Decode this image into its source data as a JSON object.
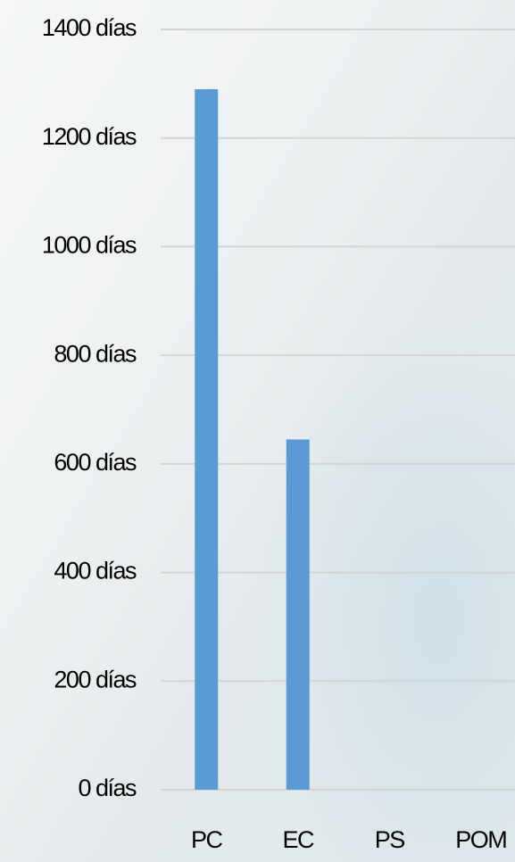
{
  "chart_data": {
    "type": "bar",
    "categories": [
      "PC",
      "EC",
      "PS",
      "POM"
    ],
    "values": [
      1290,
      645,
      0,
      0
    ],
    "color": "#5b9bd5",
    "ylim": [
      0,
      1400
    ],
    "yticks": [
      {
        "value": 0,
        "label": "0 días"
      },
      {
        "value": 200,
        "label": "200 días"
      },
      {
        "value": 400,
        "label": "400 días"
      },
      {
        "value": 600,
        "label": "600 días"
      },
      {
        "value": 800,
        "label": "800 días"
      },
      {
        "value": 1000,
        "label": "1000 días"
      },
      {
        "value": 1200,
        "label": "1200 días"
      },
      {
        "value": 1400,
        "label": "1400 días"
      }
    ],
    "grid": true
  }
}
